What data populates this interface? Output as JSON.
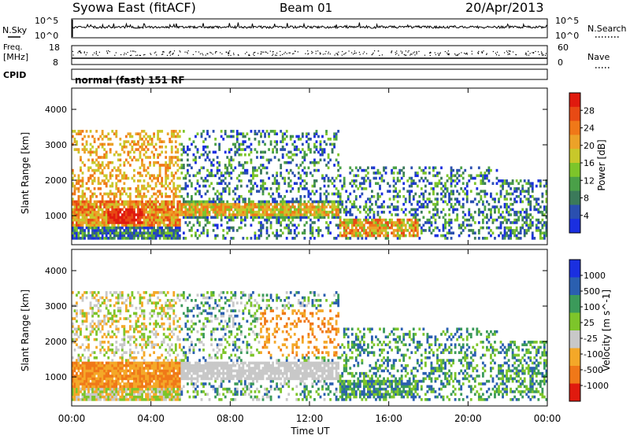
{
  "header": {
    "title": "Syowa East (fitACF)",
    "beam": "Beam 01",
    "date": "20/Apr/2013"
  },
  "noise_panel": {
    "left_label": "N.Sky",
    "right_label": "N.Search",
    "left_ticks": [
      "10^5",
      "10^0"
    ],
    "right_ticks": [
      "10^5",
      "10^0"
    ]
  },
  "freq_panel": {
    "left_label_line1": "Freq.",
    "left_label_line2": "[MHz]",
    "right_label": "Nave",
    "left_ticks": [
      "18",
      "8"
    ],
    "right_ticks": [
      "60",
      "0"
    ]
  },
  "cpid_label": "CPID",
  "mode_text": "normal (fast) 151 RF",
  "x_axis": {
    "label": "Time UT",
    "ticks": [
      "00:00",
      "04:00",
      "08:00",
      "12:00",
      "16:00",
      "20:00",
      "00:00"
    ]
  },
  "colors": {
    "power": [
      "#1a2fe0",
      "#2a4fb0",
      "#3b7a5a",
      "#4aa048",
      "#7dc52a",
      "#c8c82a",
      "#eca228",
      "#f07818",
      "#e84a14",
      "#e01a0e"
    ],
    "velocity": [
      "#e01a0e",
      "#f07818",
      "#f4a828",
      "#c8c8c8",
      "#7dc52a",
      "#3b9a5a",
      "#2a5fb0",
      "#1a2fe0"
    ]
  },
  "chart_data": [
    {
      "type": "heatmap",
      "panel": "power",
      "xlabel": "",
      "ylabel": "Slant Range [km]",
      "xlim_hours": [
        0,
        24
      ],
      "ylim": [
        180,
        4600
      ],
      "yticks": [
        1000,
        2000,
        3000,
        4000
      ],
      "colorbar": {
        "label": "Power [dB]",
        "ticks": [
          "4",
          "8",
          "12",
          "16",
          "20",
          "24",
          "28"
        ],
        "range": [
          0,
          30
        ]
      },
      "features": [
        {
          "hours": [
            0,
            5.5
          ],
          "range_km": [
            700,
            1400
          ],
          "level": "strong"
        },
        {
          "hours": [
            2,
            3.5
          ],
          "range_km": [
            800,
            1200
          ],
          "level": "very strong"
        },
        {
          "hours": [
            5.5,
            13.5
          ],
          "range_km": [
            1000,
            1350
          ],
          "level": "strong"
        },
        {
          "hours": [
            13.5,
            17.5
          ],
          "range_km": [
            450,
            900
          ],
          "level": "strong"
        },
        {
          "hours": [
            6.5,
            21
          ],
          "range_km": [
            1500,
            3400
          ],
          "level": "weak scattered"
        }
      ]
    },
    {
      "type": "heatmap",
      "panel": "velocity",
      "xlabel": "Time UT",
      "ylabel": "Slant Range [km]",
      "xlim_hours": [
        0,
        24
      ],
      "ylim": [
        180,
        4600
      ],
      "yticks": [
        1000,
        2000,
        3000,
        4000
      ],
      "colorbar": {
        "label": "Velocity [m s^-1]",
        "ticks": [
          "1000",
          "500",
          "100",
          "25",
          "-25",
          "-100",
          "-500",
          "-1000"
        ],
        "range": [
          -1000,
          1000
        ]
      },
      "features": [
        {
          "hours": [
            0,
            5.5
          ],
          "range_km": [
            700,
            1400
          ],
          "velocity": "-500 to -100"
        },
        {
          "hours": [
            4.5,
            13.5
          ],
          "range_km": [
            1000,
            1400
          ],
          "velocity": "-25 to 25"
        },
        {
          "hours": [
            10,
            13.5
          ],
          "range_km": [
            1700,
            2800
          ],
          "velocity": "-500 to -100"
        },
        {
          "hours": [
            14,
            21
          ],
          "range_km": [
            500,
            2300
          ],
          "velocity": "25 to 500"
        }
      ]
    }
  ]
}
